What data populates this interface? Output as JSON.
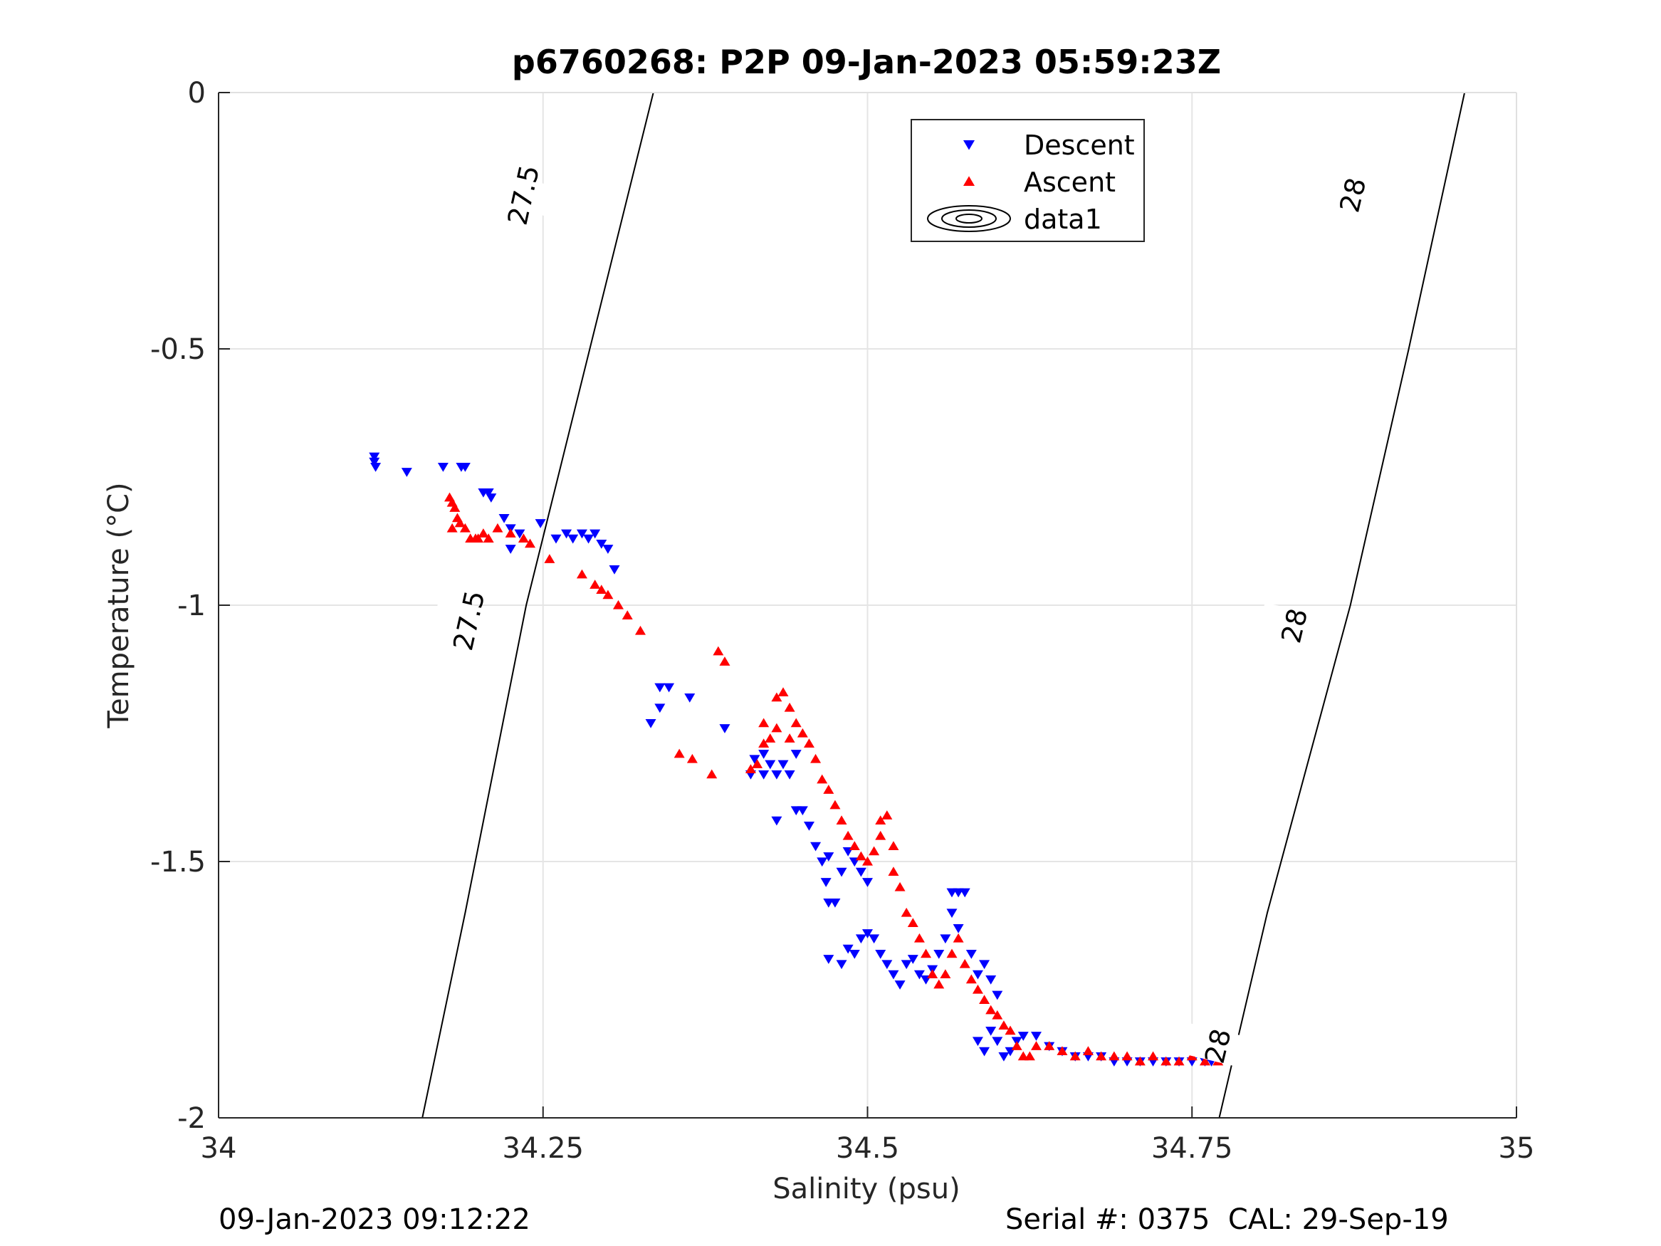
{
  "chart_data": {
    "type": "scatter",
    "title": "p6760268: P2P 09-Jan-2023 05:59:23Z",
    "xlabel": "Salinity (psu)",
    "ylabel": "Temperature (°C)",
    "xlim": [
      34,
      35
    ],
    "ylim": [
      -2,
      0
    ],
    "x_ticks": [
      34,
      34.25,
      34.5,
      34.75,
      35
    ],
    "x_tick_labels": [
      "34",
      "34.25",
      "34.5",
      "34.75",
      "35"
    ],
    "y_ticks": [
      0,
      -0.5,
      -1,
      -1.5,
      -2
    ],
    "y_tick_labels": [
      "0",
      "-0.5",
      "-1",
      "-1.5",
      "-2"
    ],
    "grid": true,
    "legend_position": "top-right",
    "colors": {
      "descent": "#0000ff",
      "ascent": "#ff0000",
      "contour": "#000000",
      "grid": "#e5e5e5"
    },
    "legend": [
      {
        "label": "Descent",
        "marker": "triangle-down",
        "color": "#0000ff"
      },
      {
        "label": "Ascent",
        "marker": "triangle-up",
        "color": "#ff0000"
      },
      {
        "label": "data1",
        "marker": "contour-ellipses",
        "color": "#000000"
      }
    ],
    "contours": [
      {
        "level": "27.5",
        "points": [
          [
            34.157,
            -2
          ],
          [
            34.19,
            -1.6
          ],
          [
            34.237,
            -1.0
          ],
          [
            34.286,
            -0.5
          ],
          [
            34.335,
            0
          ]
        ],
        "labels": [
          [
            34.193,
            -1.03
          ],
          [
            34.235,
            -0.2
          ]
        ]
      },
      {
        "level": "28",
        "points": [
          [
            34.771,
            -2
          ],
          [
            34.808,
            -1.6
          ],
          [
            34.872,
            -1.0
          ],
          [
            34.917,
            -0.5
          ],
          [
            34.96,
            0
          ]
        ],
        "labels": [
          [
            34.77,
            -1.86
          ],
          [
            34.829,
            -1.04
          ],
          [
            34.874,
            -0.2
          ]
        ]
      }
    ],
    "series": [
      {
        "name": "Descent",
        "marker": "triangle-down",
        "points": [
          [
            34.12,
            -0.71
          ],
          [
            34.12,
            -0.72
          ],
          [
            34.121,
            -0.73
          ],
          [
            34.145,
            -0.74
          ],
          [
            34.173,
            -0.73
          ],
          [
            34.187,
            -0.73
          ],
          [
            34.19,
            -0.73
          ],
          [
            34.204,
            -0.78
          ],
          [
            34.208,
            -0.78
          ],
          [
            34.21,
            -0.79
          ],
          [
            34.22,
            -0.83
          ],
          [
            34.225,
            -0.85
          ],
          [
            34.232,
            -0.86
          ],
          [
            34.225,
            -0.89
          ],
          [
            34.248,
            -0.84
          ],
          [
            34.26,
            -0.87
          ],
          [
            34.268,
            -0.86
          ],
          [
            34.273,
            -0.87
          ],
          [
            34.28,
            -0.86
          ],
          [
            34.285,
            -0.87
          ],
          [
            34.29,
            -0.86
          ],
          [
            34.295,
            -0.88
          ],
          [
            34.3,
            -0.89
          ],
          [
            34.305,
            -0.93
          ],
          [
            34.333,
            -1.23
          ],
          [
            34.34,
            -1.16
          ],
          [
            34.34,
            -1.2
          ],
          [
            34.347,
            -1.16
          ],
          [
            34.363,
            -1.18
          ],
          [
            34.39,
            -1.24
          ],
          [
            34.41,
            -1.33
          ],
          [
            34.413,
            -1.3
          ],
          [
            34.42,
            -1.33
          ],
          [
            34.42,
            -1.29
          ],
          [
            34.425,
            -1.31
          ],
          [
            34.43,
            -1.33
          ],
          [
            34.435,
            -1.31
          ],
          [
            34.44,
            -1.33
          ],
          [
            34.445,
            -1.29
          ],
          [
            34.43,
            -1.42
          ],
          [
            34.445,
            -1.4
          ],
          [
            34.45,
            -1.4
          ],
          [
            34.455,
            -1.43
          ],
          [
            34.46,
            -1.47
          ],
          [
            34.465,
            -1.5
          ],
          [
            34.468,
            -1.54
          ],
          [
            34.47,
            -1.49
          ],
          [
            34.47,
            -1.58
          ],
          [
            34.475,
            -1.58
          ],
          [
            34.48,
            -1.52
          ],
          [
            34.485,
            -1.48
          ],
          [
            34.49,
            -1.5
          ],
          [
            34.495,
            -1.52
          ],
          [
            34.5,
            -1.54
          ],
          [
            34.47,
            -1.69
          ],
          [
            34.48,
            -1.7
          ],
          [
            34.485,
            -1.67
          ],
          [
            34.49,
            -1.68
          ],
          [
            34.495,
            -1.65
          ],
          [
            34.5,
            -1.64
          ],
          [
            34.505,
            -1.65
          ],
          [
            34.51,
            -1.68
          ],
          [
            34.515,
            -1.7
          ],
          [
            34.52,
            -1.72
          ],
          [
            34.525,
            -1.74
          ],
          [
            34.53,
            -1.7
          ],
          [
            34.535,
            -1.69
          ],
          [
            34.54,
            -1.72
          ],
          [
            34.545,
            -1.73
          ],
          [
            34.55,
            -1.71
          ],
          [
            34.555,
            -1.68
          ],
          [
            34.56,
            -1.65
          ],
          [
            34.565,
            -1.56
          ],
          [
            34.57,
            -1.56
          ],
          [
            34.575,
            -1.56
          ],
          [
            34.565,
            -1.6
          ],
          [
            34.57,
            -1.63
          ],
          [
            34.58,
            -1.68
          ],
          [
            34.585,
            -1.72
          ],
          [
            34.59,
            -1.7
          ],
          [
            34.595,
            -1.73
          ],
          [
            34.6,
            -1.76
          ],
          [
            34.585,
            -1.85
          ],
          [
            34.59,
            -1.87
          ],
          [
            34.595,
            -1.83
          ],
          [
            34.6,
            -1.85
          ],
          [
            34.605,
            -1.88
          ],
          [
            34.61,
            -1.87
          ],
          [
            34.615,
            -1.85
          ],
          [
            34.62,
            -1.84
          ],
          [
            34.63,
            -1.84
          ],
          [
            34.64,
            -1.86
          ],
          [
            34.65,
            -1.87
          ],
          [
            34.66,
            -1.88
          ],
          [
            34.67,
            -1.88
          ],
          [
            34.68,
            -1.88
          ],
          [
            34.69,
            -1.89
          ],
          [
            34.7,
            -1.89
          ],
          [
            34.71,
            -1.89
          ],
          [
            34.72,
            -1.89
          ],
          [
            34.73,
            -1.89
          ],
          [
            34.74,
            -1.89
          ],
          [
            34.75,
            -1.89
          ],
          [
            34.76,
            -1.89
          ],
          [
            34.765,
            -1.89
          ]
        ]
      },
      {
        "name": "Ascent",
        "marker": "triangle-up",
        "points": [
          [
            34.178,
            -0.79
          ],
          [
            34.18,
            -0.8
          ],
          [
            34.182,
            -0.81
          ],
          [
            34.184,
            -0.83
          ],
          [
            34.18,
            -0.85
          ],
          [
            34.186,
            -0.84
          ],
          [
            34.19,
            -0.85
          ],
          [
            34.194,
            -0.87
          ],
          [
            34.198,
            -0.87
          ],
          [
            34.2,
            -0.87
          ],
          [
            34.204,
            -0.86
          ],
          [
            34.208,
            -0.87
          ],
          [
            34.215,
            -0.85
          ],
          [
            34.225,
            -0.86
          ],
          [
            34.235,
            -0.87
          ],
          [
            34.24,
            -0.88
          ],
          [
            34.255,
            -0.91
          ],
          [
            34.28,
            -0.94
          ],
          [
            34.29,
            -0.96
          ],
          [
            34.295,
            -0.97
          ],
          [
            34.3,
            -0.98
          ],
          [
            34.308,
            -1.0
          ],
          [
            34.315,
            -1.02
          ],
          [
            34.325,
            -1.05
          ],
          [
            34.355,
            -1.29
          ],
          [
            34.365,
            -1.3
          ],
          [
            34.38,
            -1.33
          ],
          [
            34.385,
            -1.09
          ],
          [
            34.39,
            -1.11
          ],
          [
            34.41,
            -1.32
          ],
          [
            34.415,
            -1.31
          ],
          [
            34.42,
            -1.27
          ],
          [
            34.42,
            -1.23
          ],
          [
            34.425,
            -1.26
          ],
          [
            34.43,
            -1.24
          ],
          [
            34.43,
            -1.18
          ],
          [
            34.435,
            -1.17
          ],
          [
            34.44,
            -1.2
          ],
          [
            34.445,
            -1.23
          ],
          [
            34.44,
            -1.26
          ],
          [
            34.45,
            -1.25
          ],
          [
            34.455,
            -1.27
          ],
          [
            34.46,
            -1.3
          ],
          [
            34.465,
            -1.34
          ],
          [
            34.47,
            -1.36
          ],
          [
            34.475,
            -1.39
          ],
          [
            34.48,
            -1.42
          ],
          [
            34.485,
            -1.45
          ],
          [
            34.49,
            -1.47
          ],
          [
            34.495,
            -1.49
          ],
          [
            34.5,
            -1.5
          ],
          [
            34.505,
            -1.48
          ],
          [
            34.51,
            -1.45
          ],
          [
            34.51,
            -1.42
          ],
          [
            34.515,
            -1.41
          ],
          [
            34.52,
            -1.47
          ],
          [
            34.52,
            -1.52
          ],
          [
            34.525,
            -1.55
          ],
          [
            34.53,
            -1.6
          ],
          [
            34.535,
            -1.62
          ],
          [
            34.54,
            -1.65
          ],
          [
            34.545,
            -1.68
          ],
          [
            34.55,
            -1.72
          ],
          [
            34.555,
            -1.74
          ],
          [
            34.56,
            -1.72
          ],
          [
            34.565,
            -1.68
          ],
          [
            34.57,
            -1.65
          ],
          [
            34.575,
            -1.7
          ],
          [
            34.58,
            -1.73
          ],
          [
            34.585,
            -1.75
          ],
          [
            34.59,
            -1.77
          ],
          [
            34.595,
            -1.79
          ],
          [
            34.6,
            -1.8
          ],
          [
            34.605,
            -1.82
          ],
          [
            34.61,
            -1.83
          ],
          [
            34.615,
            -1.86
          ],
          [
            34.62,
            -1.88
          ],
          [
            34.625,
            -1.88
          ],
          [
            34.63,
            -1.86
          ],
          [
            34.64,
            -1.86
          ],
          [
            34.65,
            -1.87
          ],
          [
            34.66,
            -1.88
          ],
          [
            34.67,
            -1.87
          ],
          [
            34.68,
            -1.88
          ],
          [
            34.69,
            -1.88
          ],
          [
            34.7,
            -1.88
          ],
          [
            34.71,
            -1.89
          ],
          [
            34.72,
            -1.88
          ],
          [
            34.73,
            -1.89
          ],
          [
            34.74,
            -1.89
          ],
          [
            34.75,
            -1.88
          ],
          [
            34.76,
            -1.89
          ],
          [
            34.77,
            -1.89
          ]
        ]
      }
    ]
  },
  "footer": {
    "date": "09-Jan-2023 09:12:22",
    "serial": "Serial #: 0375  CAL: 29-Sep-19"
  }
}
